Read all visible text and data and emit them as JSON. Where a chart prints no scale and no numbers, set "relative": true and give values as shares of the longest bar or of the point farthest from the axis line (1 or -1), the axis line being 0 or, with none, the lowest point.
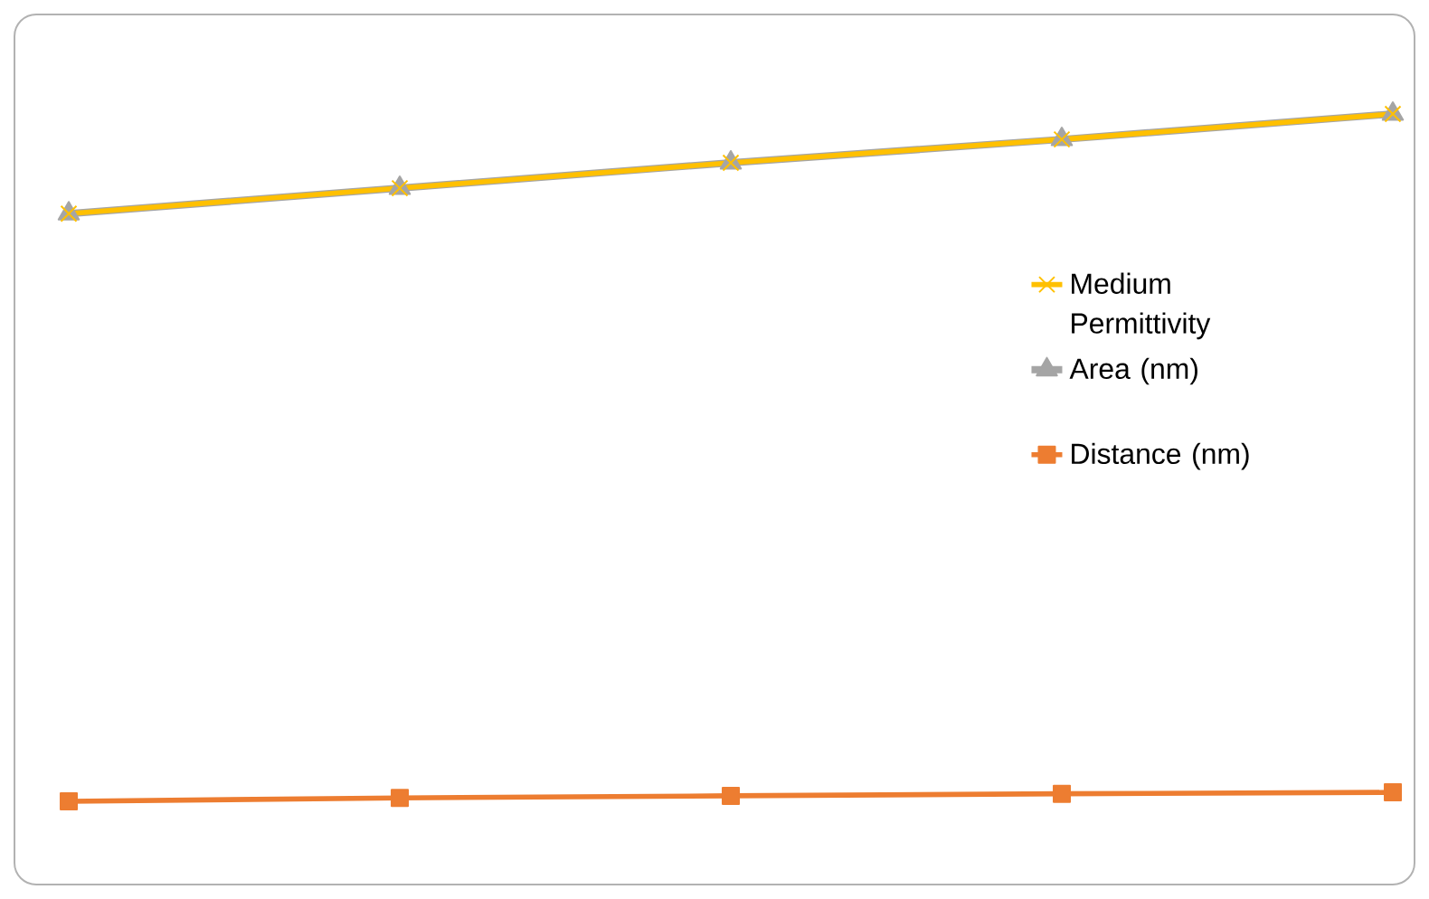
{
  "chart_data": {
    "type": "line",
    "relative": true,
    "categories": [
      null,
      null,
      null,
      null,
      null
    ],
    "legend": "right",
    "series": [
      {
        "name": "Medium Permittivity",
        "color": "#ffc000",
        "marker": "cross",
        "values": [
          0.855,
          0.892,
          0.929,
          0.963,
          1
        ]
      },
      {
        "name": "Area (nm)",
        "color": "#a5a5a5",
        "marker": "triangle",
        "values": [
          0.855,
          0.892,
          0.929,
          0.963,
          1
        ]
      },
      {
        "name": "Distance (nm)",
        "color": "#ed7d31",
        "marker": "square",
        "values": [
          0,
          0.005,
          0.008,
          0.011,
          0.013
        ]
      }
    ]
  }
}
